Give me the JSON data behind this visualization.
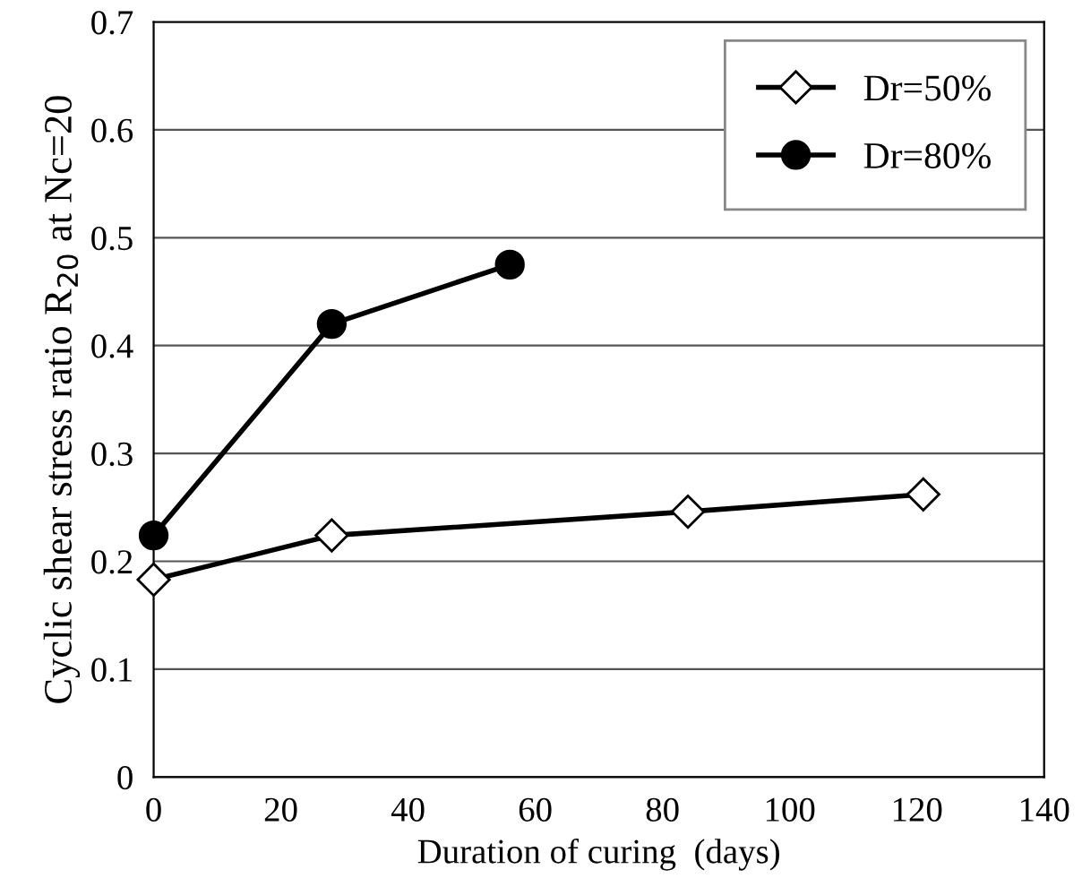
{
  "chart_data": {
    "type": "line",
    "xlabel": "Duration of curing  (days)",
    "ylabel": "Cyclic shear stress ratio R$_{20}$ at Nc=20",
    "xlim": [
      0,
      140
    ],
    "xticks": [
      0,
      20,
      40,
      60,
      80,
      100,
      120,
      140
    ],
    "ylim": [
      0,
      0.7
    ],
    "yticks": [
      0,
      0.1,
      0.2,
      0.3,
      0.4,
      0.5,
      0.6,
      0.7
    ],
    "grid": "y",
    "legend": "top right",
    "series": [
      {
        "name": "Dr=50%",
        "color": "#000000",
        "marker": "diamond",
        "x": [
          0,
          28,
          84,
          121
        ],
        "values": [
          0.183,
          0.224,
          0.246,
          0.262
        ]
      },
      {
        "name": "Dr=80%",
        "color": "#000000",
        "marker": "circle",
        "x": [
          0,
          28,
          56
        ],
        "values": [
          0.224,
          0.42,
          0.475
        ]
      }
    ]
  }
}
